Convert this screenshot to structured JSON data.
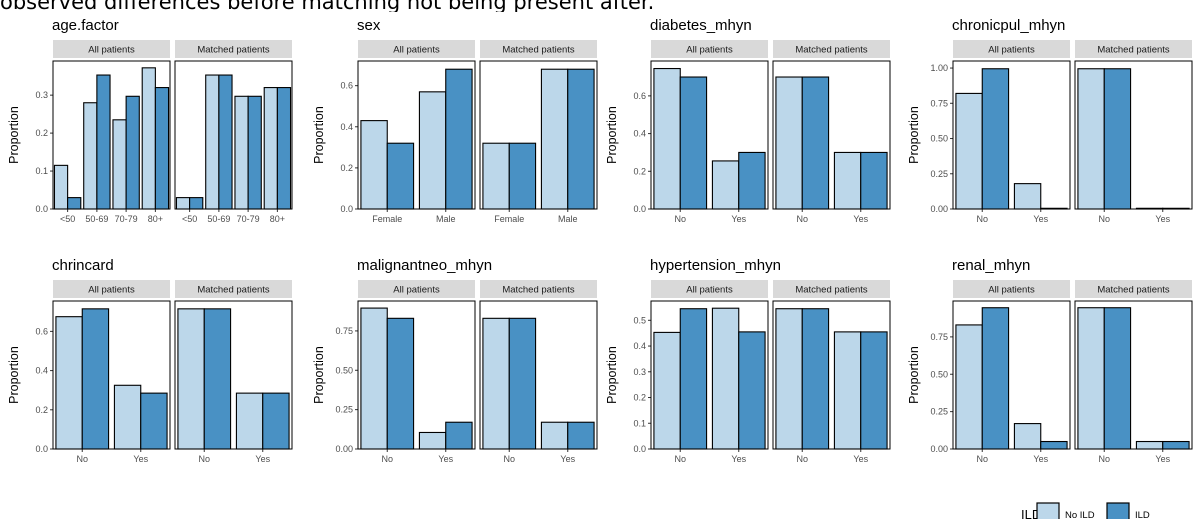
{
  "caption": "observed differences before matching not being present after.",
  "legend": {
    "title": "ILD",
    "items": [
      {
        "label": "No ILD",
        "color": "#bcd7ea"
      },
      {
        "label": "ILD",
        "color": "#4991c4"
      }
    ]
  },
  "facet_strips": [
    "All patients",
    "Matched patients"
  ],
  "ylabel": "Proportion",
  "chart_data": [
    {
      "type": "bar",
      "title": "age.factor",
      "categories": [
        "<50",
        "50-69",
        "70-79",
        "80+"
      ],
      "yticks": [
        "0.0",
        "0.1",
        "0.2",
        "0.3"
      ],
      "ylim": [
        0,
        0.39
      ],
      "panels": [
        {
          "strip": "All patients",
          "series": [
            {
              "name": "No ILD",
              "values": [
                0.115,
                0.28,
                0.235,
                0.372
              ]
            },
            {
              "name": "ILD",
              "values": [
                0.03,
                0.353,
                0.297,
                0.32
              ]
            }
          ]
        },
        {
          "strip": "Matched patients",
          "series": [
            {
              "name": "No ILD",
              "values": [
                0.03,
                0.353,
                0.297,
                0.32
              ]
            },
            {
              "name": "ILD",
              "values": [
                0.03,
                0.353,
                0.297,
                0.32
              ]
            }
          ]
        }
      ]
    },
    {
      "type": "bar",
      "title": "sex",
      "categories": [
        "Female",
        "Male"
      ],
      "yticks": [
        "0.0",
        "0.2",
        "0.4",
        "0.6"
      ],
      "ylim": [
        0,
        0.72
      ],
      "panels": [
        {
          "strip": "All patients",
          "series": [
            {
              "name": "No ILD",
              "values": [
                0.43,
                0.57
              ]
            },
            {
              "name": "ILD",
              "values": [
                0.32,
                0.68
              ]
            }
          ]
        },
        {
          "strip": "Matched patients",
          "series": [
            {
              "name": "No ILD",
              "values": [
                0.32,
                0.68
              ]
            },
            {
              "name": "ILD",
              "values": [
                0.32,
                0.68
              ]
            }
          ]
        }
      ]
    },
    {
      "type": "bar",
      "title": "diabetes_mhyn",
      "categories": [
        "No",
        "Yes"
      ],
      "yticks": [
        "0.0",
        "0.2",
        "0.4",
        "0.6"
      ],
      "ylim": [
        0,
        0.785
      ],
      "panels": [
        {
          "strip": "All patients",
          "series": [
            {
              "name": "No ILD",
              "values": [
                0.745,
                0.255
              ]
            },
            {
              "name": "ILD",
              "values": [
                0.7,
                0.3
              ]
            }
          ]
        },
        {
          "strip": "Matched patients",
          "series": [
            {
              "name": "No ILD",
              "values": [
                0.7,
                0.3
              ]
            },
            {
              "name": "ILD",
              "values": [
                0.7,
                0.3
              ]
            }
          ]
        }
      ]
    },
    {
      "type": "bar",
      "title": "chronicpul_mhyn",
      "categories": [
        "No",
        "Yes"
      ],
      "yticks": [
        "0.00",
        "0.25",
        "0.50",
        "0.75",
        "1.00"
      ],
      "ylim": [
        0,
        1.05
      ],
      "panels": [
        {
          "strip": "All patients",
          "series": [
            {
              "name": "No ILD",
              "values": [
                0.82,
                0.18
              ]
            },
            {
              "name": "ILD",
              "values": [
                0.995,
                0.005
              ]
            }
          ]
        },
        {
          "strip": "Matched patients",
          "series": [
            {
              "name": "No ILD",
              "values": [
                0.995,
                0.005
              ]
            },
            {
              "name": "ILD",
              "values": [
                0.995,
                0.005
              ]
            }
          ]
        }
      ]
    },
    {
      "type": "bar",
      "title": "chrincard",
      "categories": [
        "No",
        "Yes"
      ],
      "yticks": [
        "0.0",
        "0.2",
        "0.4",
        "0.6"
      ],
      "ylim": [
        0,
        0.755
      ],
      "panels": [
        {
          "strip": "All patients",
          "series": [
            {
              "name": "No ILD",
              "values": [
                0.675,
                0.325
              ]
            },
            {
              "name": "ILD",
              "values": [
                0.715,
                0.285
              ]
            }
          ]
        },
        {
          "strip": "Matched patients",
          "series": [
            {
              "name": "No ILD",
              "values": [
                0.715,
                0.285
              ]
            },
            {
              "name": "ILD",
              "values": [
                0.715,
                0.285
              ]
            }
          ]
        }
      ]
    },
    {
      "type": "bar",
      "title": "malignantneo_mhyn",
      "categories": [
        "No",
        "Yes"
      ],
      "yticks": [
        "0.00",
        "0.25",
        "0.50",
        "0.75"
      ],
      "ylim": [
        0,
        0.94
      ],
      "panels": [
        {
          "strip": "All patients",
          "series": [
            {
              "name": "No ILD",
              "values": [
                0.895,
                0.105
              ]
            },
            {
              "name": "ILD",
              "values": [
                0.83,
                0.17
              ]
            }
          ]
        },
        {
          "strip": "Matched patients",
          "series": [
            {
              "name": "No ILD",
              "values": [
                0.83,
                0.17
              ]
            },
            {
              "name": "ILD",
              "values": [
                0.83,
                0.17
              ]
            }
          ]
        }
      ]
    },
    {
      "type": "bar",
      "title": "hypertension_mhyn",
      "categories": [
        "No",
        "Yes"
      ],
      "yticks": [
        "0.0",
        "0.1",
        "0.2",
        "0.3",
        "0.4",
        "0.5"
      ],
      "ylim": [
        0,
        0.575
      ],
      "panels": [
        {
          "strip": "All patients",
          "series": [
            {
              "name": "No ILD",
              "values": [
                0.453,
                0.547
              ]
            },
            {
              "name": "ILD",
              "values": [
                0.545,
                0.455
              ]
            }
          ]
        },
        {
          "strip": "Matched patients",
          "series": [
            {
              "name": "No ILD",
              "values": [
                0.545,
                0.455
              ]
            },
            {
              "name": "ILD",
              "values": [
                0.545,
                0.455
              ]
            }
          ]
        }
      ]
    },
    {
      "type": "bar",
      "title": "renal_mhyn",
      "categories": [
        "No",
        "Yes"
      ],
      "yticks": [
        "0.00",
        "0.25",
        "0.50",
        "0.75"
      ],
      "ylim": [
        0,
        0.99
      ],
      "panels": [
        {
          "strip": "All patients",
          "series": [
            {
              "name": "No ILD",
              "values": [
                0.83,
                0.17
              ]
            },
            {
              "name": "ILD",
              "values": [
                0.945,
                0.05
              ]
            }
          ]
        },
        {
          "strip": "Matched patients",
          "series": [
            {
              "name": "No ILD",
              "values": [
                0.945,
                0.05
              ]
            },
            {
              "name": "ILD",
              "values": [
                0.945,
                0.05
              ]
            }
          ]
        }
      ]
    }
  ]
}
